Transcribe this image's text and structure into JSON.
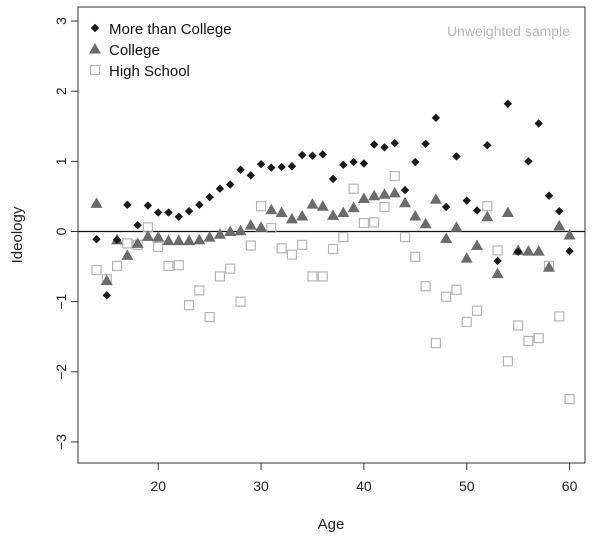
{
  "chart_data": {
    "type": "scatter",
    "xlabel": "Age",
    "ylabel": "Ideology",
    "xlim": [
      12.2,
      61.5
    ],
    "ylim": [
      -3.3,
      3.2
    ],
    "xticks": [
      20,
      30,
      40,
      50,
      60
    ],
    "yticks": [
      3,
      2,
      1,
      0,
      -1,
      -2,
      -3
    ],
    "annotation": "Unweighted sample",
    "reference_line_y": 0,
    "legend_position": "top-left",
    "series": [
      {
        "name": "More than College",
        "marker": "diamond",
        "color": "#1a1a1a",
        "points": [
          [
            14,
            -0.11
          ],
          [
            15,
            -0.91
          ],
          [
            16,
            -0.12
          ],
          [
            17,
            0.38
          ],
          [
            18,
            0.09
          ],
          [
            19,
            0.37
          ],
          [
            20,
            0.27
          ],
          [
            21,
            0.27
          ],
          [
            22,
            0.21
          ],
          [
            23,
            0.29
          ],
          [
            24,
            0.38
          ],
          [
            25,
            0.49
          ],
          [
            26,
            0.61
          ],
          [
            27,
            0.67
          ],
          [
            28,
            0.88
          ],
          [
            29,
            0.8
          ],
          [
            30,
            0.96
          ],
          [
            31,
            0.91
          ],
          [
            32,
            0.92
          ],
          [
            33,
            0.93
          ],
          [
            34,
            1.09
          ],
          [
            35,
            1.08
          ],
          [
            36,
            1.1
          ],
          [
            37,
            0.75
          ],
          [
            38,
            0.95
          ],
          [
            39,
            0.99
          ],
          [
            40,
            0.97
          ],
          [
            41,
            1.24
          ],
          [
            42,
            1.2
          ],
          [
            43,
            1.26
          ],
          [
            44,
            0.59
          ],
          [
            45,
            0.99
          ],
          [
            46,
            1.25
          ],
          [
            47,
            1.62
          ],
          [
            48,
            0.35
          ],
          [
            49,
            1.07
          ],
          [
            50,
            0.44
          ],
          [
            51,
            0.3
          ],
          [
            52,
            1.23
          ],
          [
            53,
            -0.42
          ],
          [
            54,
            1.82
          ],
          [
            55,
            -0.29
          ],
          [
            56,
            1.0
          ],
          [
            57,
            1.54
          ],
          [
            58,
            0.51
          ],
          [
            59,
            0.29
          ],
          [
            60,
            -0.28
          ]
        ]
      },
      {
        "name": "College",
        "marker": "triangle",
        "color": "#6b6b6b",
        "points": [
          [
            14,
            0.4
          ],
          [
            15,
            -0.7
          ],
          [
            16,
            -0.12
          ],
          [
            17,
            -0.34
          ],
          [
            18,
            -0.17
          ],
          [
            19,
            -0.07
          ],
          [
            20,
            -0.08
          ],
          [
            21,
            -0.13
          ],
          [
            22,
            -0.13
          ],
          [
            23,
            -0.13
          ],
          [
            24,
            -0.12
          ],
          [
            25,
            -0.08
          ],
          [
            26,
            -0.04
          ],
          [
            27,
            0.0
          ],
          [
            28,
            0.01
          ],
          [
            29,
            0.09
          ],
          [
            30,
            0.06
          ],
          [
            31,
            0.31
          ],
          [
            32,
            0.27
          ],
          [
            33,
            0.18
          ],
          [
            34,
            0.22
          ],
          [
            35,
            0.39
          ],
          [
            36,
            0.36
          ],
          [
            37,
            0.23
          ],
          [
            38,
            0.27
          ],
          [
            39,
            0.34
          ],
          [
            40,
            0.47
          ],
          [
            41,
            0.51
          ],
          [
            42,
            0.53
          ],
          [
            43,
            0.55
          ],
          [
            44,
            0.41
          ],
          [
            45,
            0.22
          ],
          [
            46,
            0.11
          ],
          [
            47,
            0.46
          ],
          [
            48,
            -0.1
          ],
          [
            49,
            0.06
          ],
          [
            50,
            -0.38
          ],
          [
            51,
            -0.2
          ],
          [
            52,
            0.21
          ],
          [
            53,
            -0.6
          ],
          [
            54,
            0.27
          ],
          [
            55,
            -0.27
          ],
          [
            56,
            -0.28
          ],
          [
            57,
            -0.28
          ],
          [
            58,
            -0.51
          ],
          [
            59,
            0.08
          ],
          [
            60,
            -0.05
          ]
        ]
      },
      {
        "name": "High School",
        "marker": "open-square",
        "color": "#b5b5b5",
        "points": [
          [
            14,
            -0.55
          ],
          [
            15,
            -0.68
          ],
          [
            16,
            -0.49
          ],
          [
            17,
            -0.17
          ],
          [
            18,
            -0.19
          ],
          [
            19,
            0.06
          ],
          [
            20,
            -0.22
          ],
          [
            21,
            -0.49
          ],
          [
            22,
            -0.48
          ],
          [
            23,
            -1.05
          ],
          [
            24,
            -0.84
          ],
          [
            25,
            -1.22
          ],
          [
            26,
            -0.64
          ],
          [
            27,
            -0.53
          ],
          [
            28,
            -1.0
          ],
          [
            29,
            -0.2
          ],
          [
            30,
            0.36
          ],
          [
            31,
            0.05
          ],
          [
            32,
            -0.24
          ],
          [
            33,
            -0.33
          ],
          [
            34,
            -0.19
          ],
          [
            35,
            -0.64
          ],
          [
            36,
            -0.64
          ],
          [
            37,
            -0.25
          ],
          [
            38,
            -0.08
          ],
          [
            39,
            0.61
          ],
          [
            40,
            0.12
          ],
          [
            41,
            0.13
          ],
          [
            42,
            0.35
          ],
          [
            43,
            0.79
          ],
          [
            44,
            -0.08
          ],
          [
            45,
            -0.36
          ],
          [
            46,
            -0.78
          ],
          [
            47,
            -1.59
          ],
          [
            48,
            -0.93
          ],
          [
            49,
            -0.83
          ],
          [
            50,
            -1.29
          ],
          [
            51,
            -1.13
          ],
          [
            52,
            0.36
          ],
          [
            53,
            -0.27
          ],
          [
            54,
            -1.85
          ],
          [
            55,
            -1.34
          ],
          [
            56,
            -1.56
          ],
          [
            57,
            -1.52
          ],
          [
            58,
            -0.49
          ],
          [
            59,
            -1.21
          ],
          [
            60,
            -2.39
          ]
        ]
      }
    ]
  }
}
